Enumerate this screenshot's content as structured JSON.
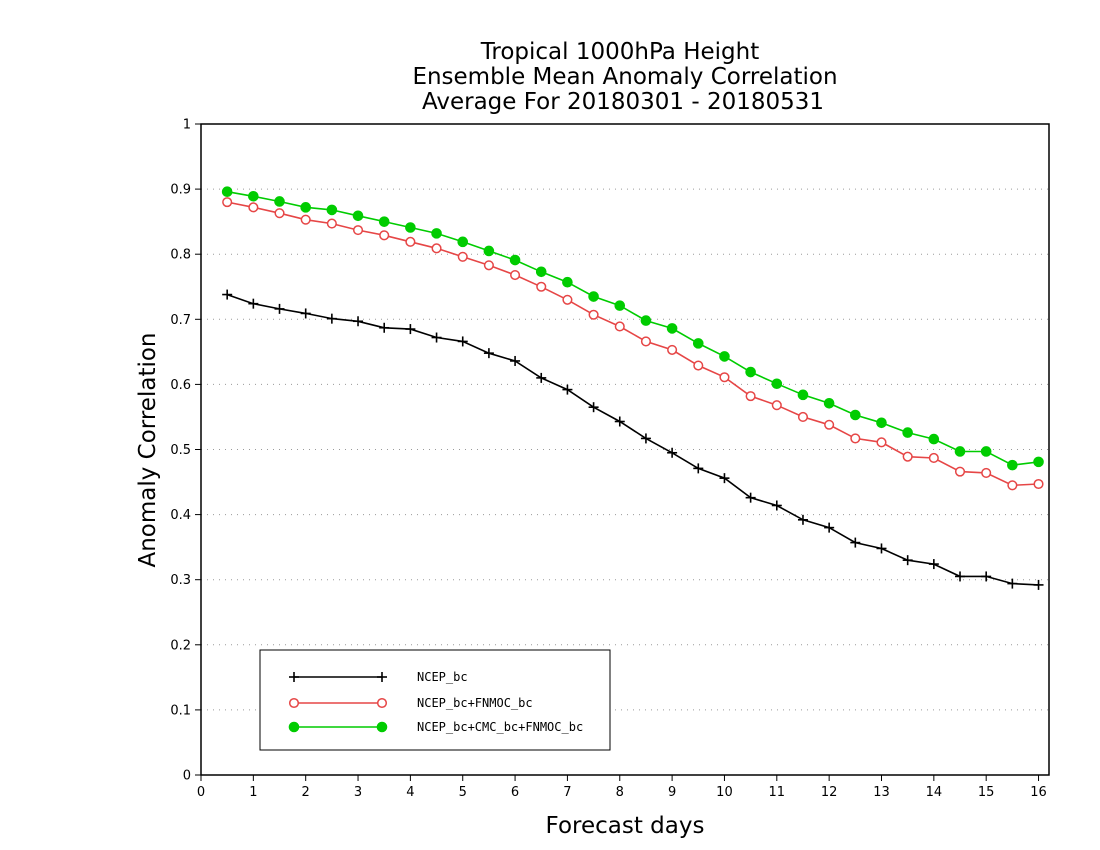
{
  "chart_data": {
    "type": "line",
    "title_lines": [
      "Tropical 1000hPa Height",
      "Ensemble Mean Anomaly Correlation",
      "Average For 20180301 - 20180531"
    ],
    "xlabel": "Forecast days",
    "ylabel": "Anomaly Correlation",
    "xlim": [
      0,
      16.2
    ],
    "ylim": [
      0,
      1
    ],
    "x_ticks": [
      "0",
      "1",
      "2",
      "3",
      "4",
      "5",
      "6",
      "7",
      "8",
      "9",
      "10",
      "11",
      "12",
      "13",
      "14",
      "15",
      "16"
    ],
    "y_ticks": [
      "0",
      "0.1",
      "0.2",
      "0.3",
      "0.4",
      "0.5",
      "0.6",
      "0.7",
      "0.8",
      "0.9",
      "1"
    ],
    "grid": "horizontal dotted",
    "legend_position": "bottom-left",
    "x": [
      0.5,
      1,
      1.5,
      2,
      2.5,
      3,
      3.5,
      4,
      4.5,
      5,
      5.5,
      6,
      6.5,
      7,
      7.5,
      8,
      8.5,
      9,
      9.5,
      10,
      10.5,
      11,
      11.5,
      12,
      12.5,
      13,
      13.5,
      14,
      14.5,
      15,
      15.5,
      16
    ],
    "series": [
      {
        "name": "NCEP_bc",
        "color": "#000000",
        "marker": "plus",
        "values": [
          0.738,
          0.724,
          0.716,
          0.709,
          0.701,
          0.697,
          0.687,
          0.685,
          0.672,
          0.666,
          0.648,
          0.636,
          0.61,
          0.592,
          0.565,
          0.543,
          0.517,
          0.495,
          0.471,
          0.456,
          0.426,
          0.414,
          0.392,
          0.38,
          0.357,
          0.348,
          0.33,
          0.324,
          0.305,
          0.305,
          0.294,
          0.292
        ]
      },
      {
        "name": "NCEP_bc+FNMOC_bc",
        "color": "#e64646",
        "marker": "open-circle",
        "values": [
          0.88,
          0.872,
          0.863,
          0.853,
          0.847,
          0.837,
          0.829,
          0.819,
          0.809,
          0.796,
          0.783,
          0.768,
          0.75,
          0.73,
          0.707,
          0.689,
          0.666,
          0.653,
          0.629,
          0.611,
          0.582,
          0.568,
          0.55,
          0.538,
          0.517,
          0.511,
          0.489,
          0.487,
          0.466,
          0.464,
          0.445,
          0.447
        ]
      },
      {
        "name": "NCEP_bc+CMC_bc+FNMOC_bc",
        "color": "#00cc00",
        "marker": "filled-circle",
        "values": [
          0.896,
          0.889,
          0.881,
          0.872,
          0.868,
          0.859,
          0.85,
          0.841,
          0.832,
          0.819,
          0.805,
          0.791,
          0.773,
          0.757,
          0.735,
          0.721,
          0.698,
          0.686,
          0.663,
          0.643,
          0.619,
          0.601,
          0.584,
          0.571,
          0.553,
          0.541,
          0.526,
          0.516,
          0.497,
          0.497,
          0.476,
          0.481
        ]
      }
    ]
  }
}
